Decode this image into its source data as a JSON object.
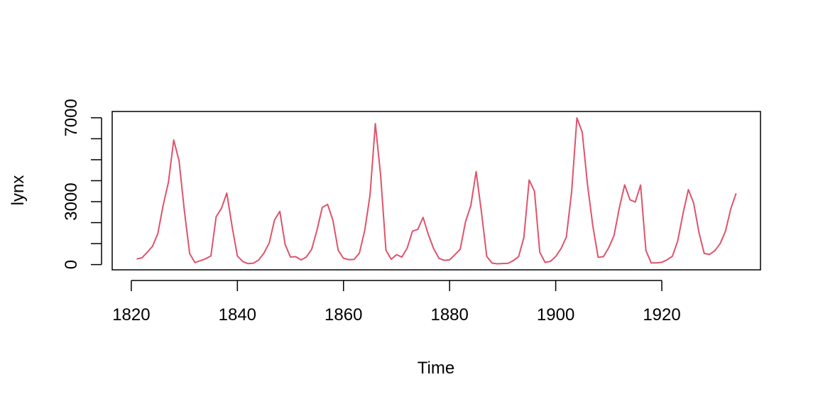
{
  "chart_data": {
    "type": "line",
    "title": "",
    "xlabel": "Time",
    "ylabel": "lynx",
    "xlim": [
      1816.4,
      1938.6
    ],
    "ylim": [
      -250,
      7300
    ],
    "xticks": [
      1820,
      1840,
      1860,
      1880,
      1900,
      1920
    ],
    "yticks": [
      0,
      1000,
      2000,
      3000,
      4000,
      5000,
      6000,
      7000
    ],
    "ytick_labels": [
      "0",
      "",
      "",
      "3000",
      "",
      "",
      "",
      "7000"
    ],
    "grid": false,
    "line_color": "#DF536B",
    "x_start": 1821,
    "x_step": 1,
    "values": [
      269,
      321,
      585,
      871,
      1475,
      2821,
      3928,
      5943,
      4950,
      2577,
      523,
      98,
      184,
      279,
      409,
      2285,
      2685,
      3409,
      1824,
      409,
      151,
      45,
      68,
      213,
      546,
      1033,
      2129,
      2536,
      957,
      361,
      377,
      225,
      360,
      731,
      1638,
      2725,
      2871,
      2119,
      684,
      299,
      236,
      245,
      552,
      1623,
      3311,
      6721,
      4254,
      687,
      255,
      473,
      358,
      784,
      1594,
      1676,
      2251,
      1426,
      756,
      299,
      201,
      229,
      469,
      736,
      2042,
      2811,
      4431,
      2511,
      389,
      73,
      39,
      49,
      59,
      188,
      377,
      1292,
      4031,
      3495,
      587,
      105,
      153,
      387,
      758,
      1307,
      3465,
      6991,
      6313,
      3794,
      1836,
      345,
      382,
      808,
      1388,
      2713,
      3800,
      3091,
      2985,
      3790,
      674,
      81,
      80,
      108,
      229,
      399,
      1132,
      2432,
      3574,
      2935,
      1537,
      529,
      485,
      662,
      1000,
      1590,
      2657,
      3396
    ]
  }
}
